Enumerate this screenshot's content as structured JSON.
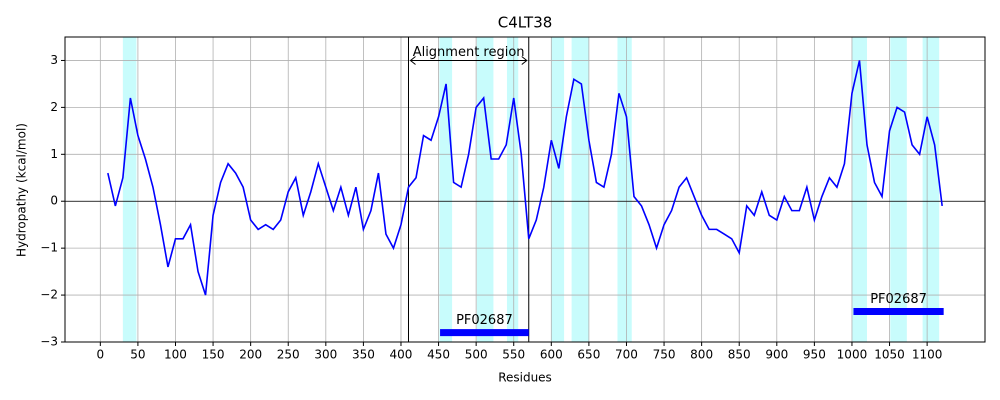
{
  "chart_data": {
    "type": "line",
    "title": "C4LT38",
    "x_label": "Residues",
    "y_label": "Hydropathy (kcal/mol)",
    "x": [
      10,
      20,
      30,
      40,
      50,
      60,
      70,
      80,
      90,
      100,
      110,
      120,
      130,
      140,
      150,
      160,
      170,
      180,
      190,
      200,
      210,
      220,
      230,
      240,
      250,
      260,
      270,
      280,
      290,
      300,
      310,
      320,
      330,
      340,
      350,
      360,
      370,
      380,
      390,
      400,
      410,
      420,
      430,
      440,
      450,
      460,
      470,
      480,
      490,
      500,
      510,
      520,
      530,
      540,
      550,
      560,
      570,
      580,
      590,
      600,
      610,
      620,
      630,
      640,
      650,
      660,
      670,
      680,
      690,
      700,
      710,
      720,
      730,
      740,
      750,
      760,
      770,
      780,
      790,
      800,
      810,
      820,
      830,
      840,
      850,
      860,
      870,
      880,
      890,
      900,
      910,
      920,
      930,
      940,
      950,
      960,
      970,
      980,
      990,
      1000,
      1010,
      1020,
      1030,
      1040,
      1050,
      1060,
      1070,
      1080,
      1090,
      1100,
      1110,
      1120
    ],
    "values": [
      0.6,
      -0.1,
      0.5,
      2.2,
      1.4,
      0.9,
      0.3,
      -0.5,
      -1.4,
      -0.8,
      -0.8,
      -0.5,
      -1.5,
      -2.0,
      -0.3,
      0.4,
      0.8,
      0.6,
      0.3,
      -0.4,
      -0.6,
      -0.5,
      -0.6,
      -0.4,
      0.2,
      0.5,
      -0.3,
      0.2,
      0.8,
      0.3,
      -0.2,
      0.3,
      -0.3,
      0.3,
      -0.6,
      -0.2,
      0.6,
      -0.7,
      -1.0,
      -0.5,
      0.3,
      0.5,
      1.4,
      1.3,
      1.8,
      2.5,
      0.4,
      0.3,
      1.0,
      2.0,
      2.2,
      0.9,
      0.9,
      1.2,
      2.2,
      1.0,
      -0.8,
      -0.4,
      0.3,
      1.3,
      0.7,
      1.8,
      2.6,
      2.5,
      1.3,
      0.4,
      0.3,
      1.0,
      2.3,
      1.8,
      0.1,
      -0.1,
      -0.5,
      -1.0,
      -0.5,
      -0.2,
      0.3,
      0.5,
      0.1,
      -0.3,
      -0.6,
      -0.6,
      -0.7,
      -0.8,
      -1.1,
      -0.1,
      -0.3,
      0.2,
      -0.3,
      -0.4,
      0.1,
      -0.2,
      -0.2,
      0.3,
      -0.4,
      0.1,
      0.5,
      0.3,
      0.8,
      2.3,
      3.0,
      1.2,
      0.4,
      0.1,
      1.5,
      2.0,
      1.9,
      1.2,
      1.0,
      1.8,
      1.2,
      -0.1
    ],
    "color": "#0000ff",
    "xlim": [
      -47,
      1177
    ],
    "ylim": [
      -3,
      3.5
    ],
    "xticks": [
      0,
      50,
      100,
      150,
      200,
      250,
      300,
      350,
      400,
      450,
      500,
      550,
      600,
      650,
      700,
      750,
      800,
      850,
      900,
      950,
      1000,
      1050,
      1100
    ],
    "yticks": [
      {
        "value": -3,
        "label": "−3"
      },
      {
        "value": -2,
        "label": "−2"
      },
      {
        "value": -1,
        "label": "−1"
      },
      0,
      1,
      2,
      3
    ],
    "grid": true,
    "shaded_regions": [
      [
        30,
        48
      ],
      [
        451,
        468
      ],
      [
        501,
        523
      ],
      [
        541,
        556
      ],
      [
        600,
        617
      ],
      [
        627,
        650
      ],
      [
        688,
        707
      ],
      [
        1000,
        1020
      ],
      [
        1051,
        1073
      ],
      [
        1094,
        1116
      ]
    ],
    "shade_color": "#c8fcfc",
    "alignment_region": {
      "label": "Alignment region",
      "start": 410,
      "end": 570
    },
    "domains": [
      {
        "label": "PF02687",
        "start": 452,
        "end": 570,
        "y": -2.8
      },
      {
        "label": "PF02687",
        "start": 1002,
        "end": 1122,
        "y": -2.35
      }
    ]
  }
}
